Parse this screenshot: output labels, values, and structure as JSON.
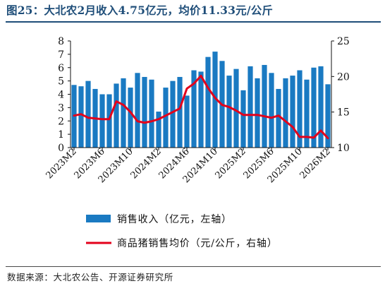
{
  "title": "图25：大北农2月收入4.75亿元，均价11.33元/公斤",
  "source": "数据来源：大北农公告、开源证券研究所",
  "colors": {
    "title": "#1f4e79",
    "bar": "#1a7ac2",
    "line": "#e3001b"
  },
  "chart_data": {
    "type": "bar+line",
    "categories": [
      "2023M2",
      "2023M3",
      "2023M4",
      "2023M5",
      "2023M6",
      "2023M7",
      "2023M8",
      "2023M9",
      "2023M10",
      "2023M11",
      "2023M12",
      "2024M1",
      "2024M2",
      "2024M3",
      "2024M4",
      "2024M5",
      "2024M6",
      "2024M7",
      "2024M8",
      "2024M9",
      "2024M10",
      "2024M11",
      "2024M12",
      "2025M1",
      "2025M2",
      "2025M3",
      "2025M4",
      "2025M5",
      "2025M6",
      "2025M7",
      "2025M8",
      "2025M9",
      "2025M10",
      "2025M11",
      "2025M12",
      "2026M1",
      "2026M2"
    ],
    "x_tick_labels": [
      "2023M2",
      "2023M6",
      "2023M10",
      "2024M2",
      "2024M6",
      "2024M10",
      "2025M2",
      "2025M6",
      "2025M10",
      "2026M2"
    ],
    "series": [
      {
        "name": "销售收入（亿元，左轴）",
        "type": "bar",
        "axis": "left",
        "values": [
          4.7,
          4.6,
          5.0,
          4.4,
          4.0,
          4.0,
          4.8,
          5.2,
          4.5,
          5.6,
          5.3,
          5.1,
          2.7,
          4.5,
          5.0,
          5.3,
          3.9,
          5.8,
          5.7,
          6.8,
          7.2,
          6.5,
          5.4,
          5.9,
          4.3,
          6.1,
          5.2,
          6.2,
          5.6,
          4.4,
          5.2,
          5.4,
          5.8,
          5.1,
          6.0,
          6.1,
          4.75
        ]
      },
      {
        "name": "商品猪销售均价（元/公斤，右轴）",
        "type": "line",
        "axis": "right",
        "values": [
          14.5,
          14.7,
          14.2,
          14.1,
          14.0,
          14.0,
          16.5,
          16.0,
          15.0,
          13.7,
          13.5,
          13.7,
          14.0,
          14.5,
          15.0,
          15.5,
          18.3,
          19.0,
          20.1,
          18.4,
          17.0,
          16.0,
          15.7,
          15.2,
          14.6,
          14.6,
          14.6,
          14.4,
          14.2,
          14.5,
          13.7,
          12.9,
          11.5,
          11.5,
          11.4,
          12.4,
          11.33
        ]
      }
    ],
    "y_left": {
      "min": 0,
      "max": 8,
      "ticks": [
        0,
        1,
        2,
        3,
        4,
        5,
        6,
        7,
        8
      ]
    },
    "y_right": {
      "min": 10,
      "max": 25,
      "ticks": [
        10,
        15,
        20,
        25
      ]
    },
    "legend_position": "bottom",
    "grid": false
  }
}
